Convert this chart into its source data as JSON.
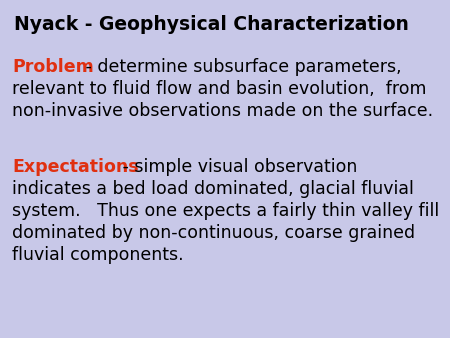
{
  "background_color": "#c8c8e8",
  "title": "Nyack - Geophysical Characterization",
  "title_color": "#000000",
  "title_fontsize": 13.5,
  "title_bold": true,
  "keyword1": "Problem",
  "keyword1_color": "#e03010",
  "text1_line1": " - determine subsurface parameters,",
  "text1_line2": "relevant to fluid flow and basin evolution,  from",
  "text1_line3": "non-invasive observations made on the surface.",
  "keyword2": "Expectations",
  "keyword2_color": "#e03010",
  "text2_line1": " - simple visual observation",
  "text2_line2": "indicates a bed load dominated, glacial fluvial",
  "text2_line3": "system.   Thus one expects a fairly thin valley fill",
  "text2_line4": "dominated by non-continuous, coarse grained",
  "text2_line5": "fluvial components.",
  "text_color": "#000000",
  "body_fontsize": 12.5
}
